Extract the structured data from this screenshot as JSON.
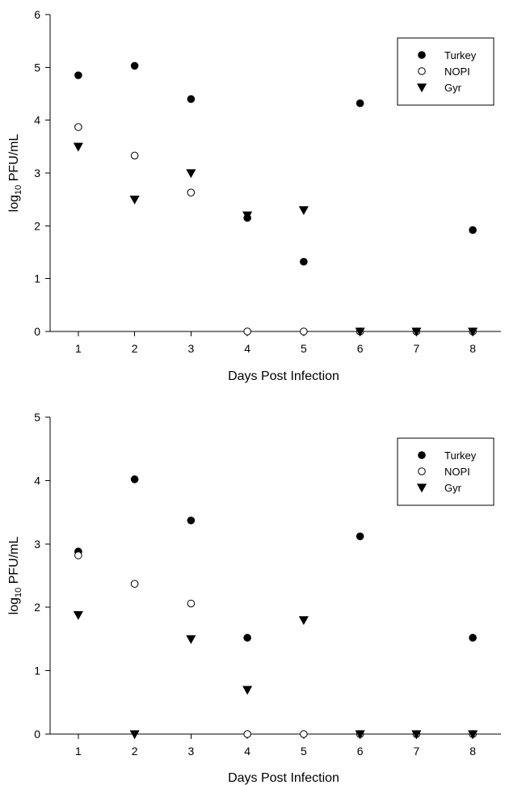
{
  "chart_data": [
    {
      "type": "scatter",
      "x": [
        1,
        2,
        3,
        4,
        5,
        6,
        7,
        8
      ],
      "xlim": [
        0.5,
        8.5
      ],
      "ylim": [
        0,
        6
      ],
      "xticks": [
        1,
        2,
        3,
        4,
        5,
        6,
        7,
        8
      ],
      "yticks": [
        0,
        1,
        2,
        3,
        4,
        5,
        6
      ],
      "xlabel": "Days Post Infection",
      "ylabel": "log10 PFU/mL",
      "ylabel_main": "log",
      "ylabel_sub": "10",
      "ylabel_rest": " PFU/mL",
      "grid": false,
      "legend_position": "top-right",
      "series": [
        {
          "name": "Turkey",
          "marker": "filled-circle",
          "points": [
            [
              1,
              4.85
            ],
            [
              2,
              5.03
            ],
            [
              3,
              4.4
            ],
            [
              4,
              2.15
            ],
            [
              5,
              1.32
            ],
            [
              6,
              4.32
            ],
            [
              8,
              1.92
            ]
          ]
        },
        {
          "name": "NOPI",
          "marker": "open-circle",
          "points": [
            [
              1,
              3.87
            ],
            [
              2,
              3.33
            ],
            [
              3,
              2.63
            ],
            [
              4,
              0
            ],
            [
              5,
              0
            ],
            [
              6,
              0
            ],
            [
              7,
              0
            ],
            [
              8,
              0
            ]
          ]
        },
        {
          "name": "Gyr",
          "marker": "filled-triangle-down",
          "points": [
            [
              1,
              3.5
            ],
            [
              2,
              2.5
            ],
            [
              3,
              3.0
            ],
            [
              4,
              2.2
            ],
            [
              5,
              2.3
            ],
            [
              6,
              0
            ],
            [
              7,
              0
            ],
            [
              8,
              0
            ]
          ]
        }
      ]
    },
    {
      "type": "scatter",
      "x": [
        1,
        2,
        3,
        4,
        5,
        6,
        7,
        8
      ],
      "xlim": [
        0.5,
        8.5
      ],
      "ylim": [
        0,
        5
      ],
      "xticks": [
        1,
        2,
        3,
        4,
        5,
        6,
        7,
        8
      ],
      "yticks": [
        0,
        1,
        2,
        3,
        4,
        5
      ],
      "xlabel": "Days Post Infection",
      "ylabel": "log10 PFU/mL",
      "ylabel_main": "log",
      "ylabel_sub": "10",
      "ylabel_rest": " PFU/mL",
      "grid": false,
      "legend_position": "top-right",
      "series": [
        {
          "name": "Turkey",
          "marker": "filled-circle",
          "points": [
            [
              1,
              2.88
            ],
            [
              2,
              4.02
            ],
            [
              3,
              3.37
            ],
            [
              4,
              1.52
            ],
            [
              6,
              3.12
            ],
            [
              8,
              1.52
            ]
          ]
        },
        {
          "name": "NOPI",
          "marker": "open-circle",
          "points": [
            [
              1,
              2.82
            ],
            [
              2,
              2.37
            ],
            [
              3,
              2.06
            ],
            [
              4,
              0
            ],
            [
              5,
              0
            ],
            [
              6,
              0
            ],
            [
              7,
              0
            ],
            [
              8,
              0
            ]
          ]
        },
        {
          "name": "Gyr",
          "marker": "filled-triangle-down",
          "points": [
            [
              1,
              1.88
            ],
            [
              2,
              0
            ],
            [
              3,
              1.5
            ],
            [
              4,
              0.7
            ],
            [
              5,
              1.8
            ],
            [
              6,
              0
            ],
            [
              7,
              0
            ],
            [
              8,
              0
            ]
          ]
        }
      ]
    }
  ]
}
